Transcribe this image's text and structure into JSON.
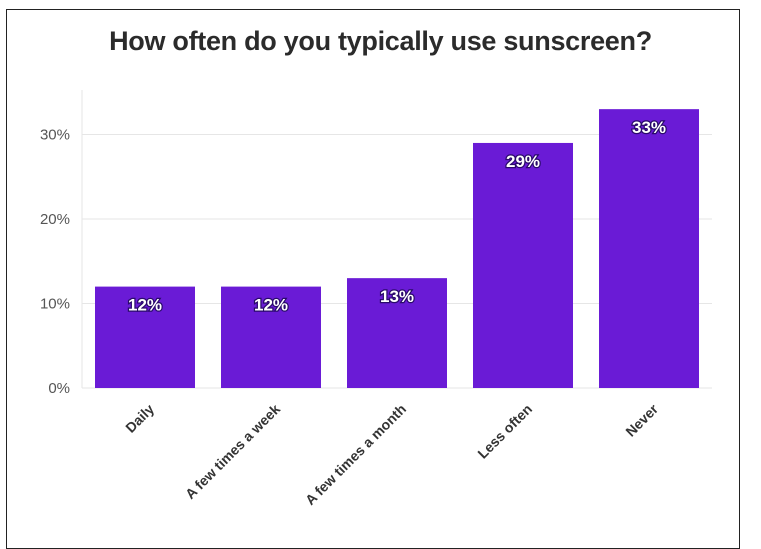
{
  "chart_data": {
    "type": "bar",
    "title": "How often do you typically use sunscreen?",
    "xlabel": "",
    "ylabel": "",
    "categories": [
      "Daily",
      "A few times a week",
      "A few times a month",
      "Less often",
      "Never"
    ],
    "values": [
      12,
      12,
      13,
      29,
      33
    ],
    "value_labels": [
      "12%",
      "12%",
      "13%",
      "29%",
      "33%"
    ],
    "yticks": [
      0,
      10,
      20,
      30
    ],
    "ytick_labels": [
      "0%",
      "10%",
      "20%",
      "30%"
    ],
    "ylim": [
      0,
      35
    ],
    "grid": true,
    "legend": "none",
    "colors": {
      "bar": "#6a1bd6",
      "grid": "#e6e6e6",
      "label_outline": "#2a0a6b"
    }
  }
}
